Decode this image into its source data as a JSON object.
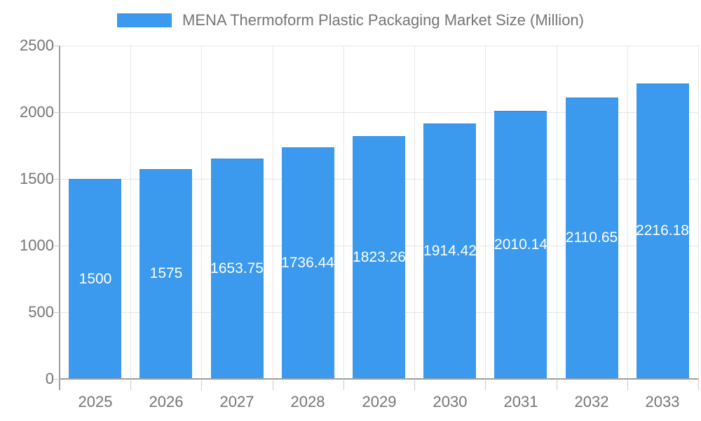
{
  "colors": {
    "bar": "#3b99ee",
    "bar_label_text": "#ffffff",
    "axis_text": "#757575",
    "gridline": "#e6e6e6",
    "axis_line": "#9e9e9e",
    "background": "#ffffff"
  },
  "legend": {
    "label": "MENA Thermoform Plastic Packaging Market Size (Million)",
    "swatch_color": "#3b99ee"
  },
  "chart_data": {
    "type": "bar",
    "title": "MENA Thermoform Plastic Packaging Market Size (Million)",
    "categories": [
      "2025",
      "2026",
      "2027",
      "2028",
      "2029",
      "2030",
      "2031",
      "2032",
      "2033"
    ],
    "values": [
      1500,
      1575,
      1653.75,
      1736.44,
      1823.26,
      1914.42,
      2010.14,
      2110.65,
      2216.18
    ],
    "value_labels": [
      "1500",
      "1575",
      "1653.75",
      "1736.44",
      "1823.26",
      "1914.42",
      "2010.14",
      "2110.65",
      "2216.18"
    ],
    "xlabel": "",
    "ylabel": "",
    "ylim": [
      0,
      2500
    ],
    "y_ticks": [
      0,
      500,
      1000,
      1500,
      2000,
      2500
    ],
    "grid": true,
    "legend_position": "top",
    "value_label_position": "inside-center",
    "series_color": "#3b99ee"
  }
}
